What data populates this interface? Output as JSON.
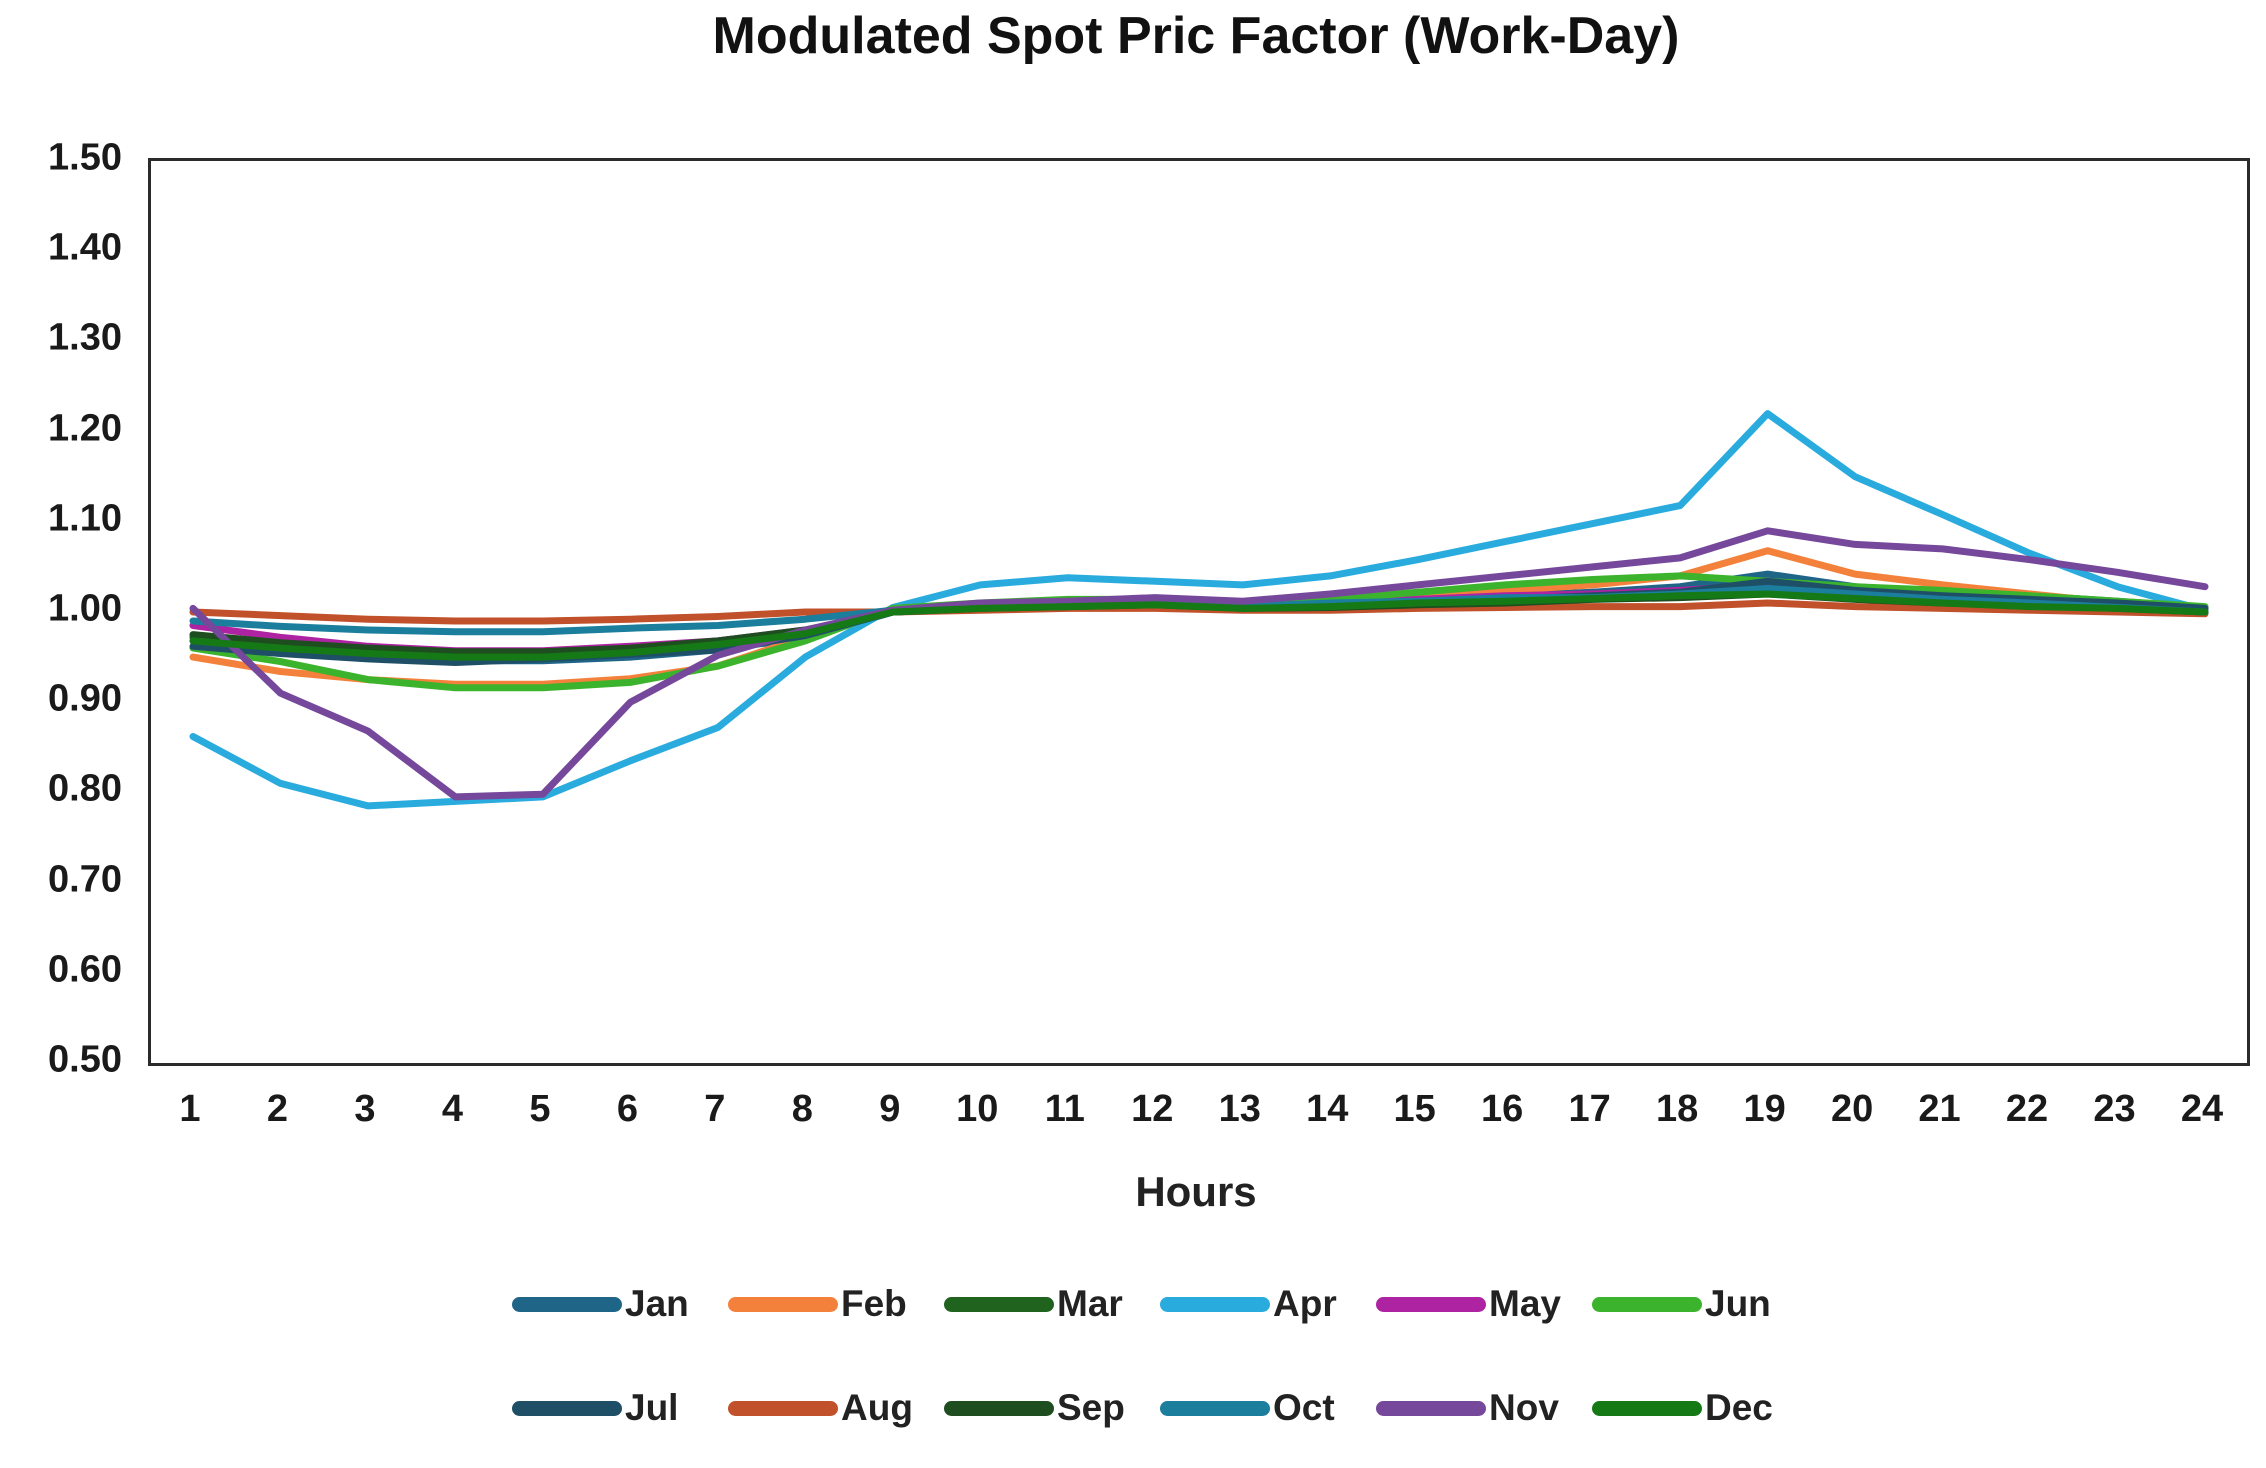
{
  "chart_data": {
    "type": "line",
    "title": "Modulated Spot Pric Factor (Work-Day)",
    "xlabel": "Hours",
    "ylabel": "",
    "grid": false,
    "legend_position": "bottom",
    "ylim": [
      0.5,
      1.5
    ],
    "ytick_labels": [
      "1.50",
      "1.40",
      "1.30",
      "1.20",
      "1.10",
      "1.00",
      "0.90",
      "0.80",
      "0.70",
      "0.60",
      "0.50"
    ],
    "x": [
      1,
      2,
      3,
      4,
      5,
      6,
      7,
      8,
      9,
      10,
      11,
      12,
      13,
      14,
      15,
      16,
      17,
      18,
      19,
      20,
      21,
      22,
      23,
      24
    ],
    "series": [
      {
        "name": "Jan",
        "color": "#1F6587",
        "values": [
          0.968,
          0.958,
          0.95,
          0.946,
          0.946,
          0.95,
          0.958,
          0.972,
          1.0,
          1.005,
          1.008,
          1.01,
          1.005,
          1.008,
          1.012,
          1.018,
          1.022,
          1.028,
          1.042,
          1.028,
          1.022,
          1.018,
          1.012,
          1.005
        ]
      },
      {
        "name": "Feb",
        "color": "#F4813B",
        "values": [
          0.95,
          0.934,
          0.925,
          0.92,
          0.92,
          0.926,
          0.94,
          0.972,
          1.002,
          1.008,
          1.012,
          1.012,
          1.008,
          1.012,
          1.018,
          1.024,
          1.03,
          1.04,
          1.068,
          1.042,
          1.03,
          1.02,
          1.01,
          1.0
        ]
      },
      {
        "name": "Mar",
        "color": "#20631F",
        "values": [
          0.972,
          0.964,
          0.958,
          0.954,
          0.954,
          0.958,
          0.966,
          0.978,
          1.0,
          1.004,
          1.008,
          1.008,
          1.005,
          1.006,
          1.01,
          1.014,
          1.016,
          1.02,
          1.024,
          1.018,
          1.014,
          1.01,
          1.006,
          1.0
        ]
      },
      {
        "name": "Apr",
        "color": "#29ABDE",
        "values": [
          0.862,
          0.81,
          0.785,
          0.79,
          0.795,
          0.835,
          0.872,
          0.95,
          1.005,
          1.03,
          1.038,
          1.034,
          1.03,
          1.04,
          1.058,
          1.078,
          1.098,
          1.118,
          1.22,
          1.15,
          1.108,
          1.065,
          1.028,
          1.002
        ]
      },
      {
        "name": "May",
        "color": "#AE23A2",
        "values": [
          0.985,
          0.972,
          0.962,
          0.957,
          0.957,
          0.962,
          0.968,
          0.98,
          1.0,
          1.005,
          1.008,
          1.01,
          1.006,
          1.01,
          1.014,
          1.018,
          1.02,
          1.024,
          1.03,
          1.024,
          1.02,
          1.015,
          1.01,
          1.004
        ]
      },
      {
        "name": "Jun",
        "color": "#3CB32C",
        "values": [
          0.96,
          0.945,
          0.925,
          0.916,
          0.916,
          0.922,
          0.94,
          0.968,
          1.004,
          1.01,
          1.014,
          1.014,
          1.01,
          1.014,
          1.022,
          1.03,
          1.036,
          1.04,
          1.034,
          1.028,
          1.024,
          1.018,
          1.012,
          1.006
        ]
      },
      {
        "name": "Jul",
        "color": "#1F4E67",
        "values": [
          0.962,
          0.954,
          0.948,
          0.944,
          0.948,
          0.953,
          0.958,
          0.974,
          1.0,
          1.004,
          1.006,
          1.008,
          1.004,
          1.006,
          1.01,
          1.014,
          1.018,
          1.022,
          1.034,
          1.024,
          1.018,
          1.014,
          1.01,
          1.004
        ]
      },
      {
        "name": "Aug",
        "color": "#C0512B",
        "values": [
          1.0,
          0.996,
          0.992,
          0.99,
          0.99,
          0.992,
          0.995,
          1.0,
          1.0,
          1.002,
          1.004,
          1.004,
          1.002,
          1.002,
          1.004,
          1.005,
          1.006,
          1.006,
          1.01,
          1.006,
          1.004,
          1.002,
          1.0,
          0.998
        ]
      },
      {
        "name": "Sep",
        "color": "#1E4D20",
        "values": [
          0.975,
          0.966,
          0.96,
          0.956,
          0.956,
          0.96,
          0.968,
          0.98,
          1.0,
          1.004,
          1.006,
          1.008,
          1.004,
          1.005,
          1.008,
          1.01,
          1.014,
          1.016,
          1.02,
          1.014,
          1.01,
          1.008,
          1.004,
          1.0
        ]
      },
      {
        "name": "Oct",
        "color": "#1A7E9C",
        "values": [
          0.99,
          0.984,
          0.98,
          0.978,
          0.978,
          0.982,
          0.985,
          0.992,
          1.002,
          1.006,
          1.01,
          1.01,
          1.006,
          1.01,
          1.012,
          1.016,
          1.016,
          1.02,
          1.026,
          1.02,
          1.014,
          1.01,
          1.005,
          1.0
        ]
      },
      {
        "name": "Nov",
        "color": "#76489B",
        "values": [
          1.004,
          0.91,
          0.868,
          0.795,
          0.798,
          0.9,
          0.952,
          0.98,
          1.002,
          1.01,
          1.012,
          1.016,
          1.012,
          1.02,
          1.03,
          1.04,
          1.05,
          1.06,
          1.09,
          1.075,
          1.07,
          1.058,
          1.044,
          1.028
        ]
      },
      {
        "name": "Dec",
        "color": "#157A15",
        "values": [
          0.968,
          0.96,
          0.954,
          0.95,
          0.95,
          0.955,
          0.964,
          0.976,
          1.0,
          1.004,
          1.006,
          1.008,
          1.004,
          1.006,
          1.01,
          1.012,
          1.015,
          1.018,
          1.02,
          1.015,
          1.01,
          1.006,
          1.004,
          1.0
        ]
      }
    ]
  }
}
